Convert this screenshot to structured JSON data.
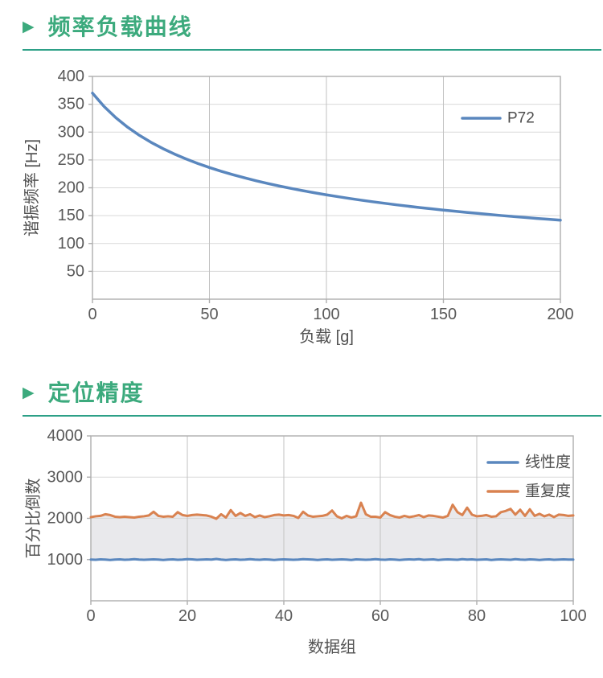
{
  "theme": {
    "title_green": "#3caa7d",
    "rule_green": "#2da087",
    "series_blue": "#5a87be",
    "series_orange": "#d98250",
    "fill_gray": "#e9e9ec",
    "tick_text": "#595959"
  },
  "sections": [
    {
      "marker": "▶",
      "title": "频率负载曲线"
    },
    {
      "marker": "▶",
      "title": "定位精度"
    }
  ],
  "chart_data": [
    {
      "type": "line",
      "title": "",
      "xlabel": "负载 [g]",
      "ylabel": "谐振频率 [Hz]",
      "xlim": [
        0,
        200
      ],
      "ylim": [
        0,
        400
      ],
      "xticks": [
        0,
        50,
        100,
        150,
        200
      ],
      "yticks": [
        50,
        100,
        150,
        200,
        250,
        300,
        350,
        400
      ],
      "grid": true,
      "legend_position": "top-right-inside",
      "series": [
        {
          "name": "P72",
          "color": "#5a87be",
          "x": [
            0,
            5,
            10,
            15,
            20,
            25,
            30,
            35,
            40,
            45,
            50,
            55,
            60,
            65,
            70,
            75,
            80,
            85,
            90,
            95,
            100,
            105,
            110,
            115,
            120,
            125,
            130,
            135,
            140,
            145,
            150,
            155,
            160,
            165,
            170,
            175,
            180,
            185,
            190,
            195,
            200
          ],
          "y": [
            370.0,
            345.8,
            325.8,
            308.9,
            294.4,
            281.7,
            270.6,
            260.7,
            251.8,
            243.7,
            236.4,
            229.7,
            223.6,
            217.9,
            212.6,
            207.7,
            203.1,
            198.8,
            194.8,
            191.0,
            187.4,
            184.0,
            180.8,
            177.7,
            174.8,
            172.1,
            169.4,
            166.9,
            164.5,
            162.2,
            160.0,
            157.9,
            155.8,
            153.9,
            152.0,
            150.1,
            148.4,
            146.7,
            145.0,
            143.5,
            141.9
          ]
        }
      ]
    },
    {
      "type": "line",
      "title": "",
      "xlabel": "数据组",
      "ylabel": "百分比倒数",
      "xlim": [
        0,
        100
      ],
      "ylim": [
        0,
        4000
      ],
      "xticks": [
        0,
        20,
        40,
        60,
        80,
        100
      ],
      "yticks": [
        1000,
        2000,
        3000,
        4000
      ],
      "grid": true,
      "legend_position": "top-right-inside",
      "fill_between": {
        "upper": "重复度",
        "lower": "线性度",
        "color": "#e9e9ec"
      },
      "series": [
        {
          "name": "线性度",
          "color": "#5a87be",
          "x": [
            0,
            1,
            2,
            3,
            4,
            5,
            6,
            7,
            8,
            9,
            10,
            11,
            12,
            13,
            14,
            15,
            16,
            17,
            18,
            19,
            20,
            21,
            22,
            23,
            24,
            25,
            26,
            27,
            28,
            29,
            30,
            31,
            32,
            33,
            34,
            35,
            36,
            37,
            38,
            39,
            40,
            41,
            42,
            43,
            44,
            45,
            46,
            47,
            48,
            49,
            50,
            51,
            52,
            53,
            54,
            55,
            56,
            57,
            58,
            59,
            60,
            61,
            62,
            63,
            64,
            65,
            66,
            67,
            68,
            69,
            70,
            71,
            72,
            73,
            74,
            75,
            76,
            77,
            78,
            79,
            80,
            81,
            82,
            83,
            84,
            85,
            86,
            87,
            88,
            89,
            90,
            91,
            92,
            93,
            94,
            95,
            96,
            97,
            98,
            99,
            100
          ],
          "y": [
            1000,
            995,
            1005,
            1000,
            990,
            1000,
            1005,
            995,
            1000,
            1010,
            1000,
            995,
            1000,
            1005,
            1000,
            990,
            1000,
            1005,
            995,
            1000,
            1010,
            1005,
            995,
            1000,
            1005,
            1000,
            1015,
            1000,
            990,
            1000,
            1005,
            995,
            1000,
            1010,
            1000,
            995,
            1005,
            1000,
            990,
            1000,
            1005,
            1000,
            995,
            1000,
            1010,
            1005,
            1000,
            990,
            1000,
            1005,
            995,
            1000,
            1005,
            1000,
            990,
            1005,
            1000,
            995,
            1000,
            1010,
            1000,
            995,
            1005,
            1000,
            990,
            1000,
            1005,
            1000,
            1010,
            995,
            1000,
            1005,
            990,
            1000,
            1005,
            1000,
            995,
            1010,
            1000,
            1005,
            995,
            1000,
            1005,
            990,
            1000,
            1005,
            1000,
            995,
            1010,
            1000,
            995,
            1005,
            1000,
            990,
            1000,
            1005,
            995,
            1000,
            1005,
            1000,
            1000
          ]
        },
        {
          "name": "重复度",
          "color": "#d98250",
          "x": [
            0,
            1,
            2,
            3,
            4,
            5,
            6,
            7,
            8,
            9,
            10,
            11,
            12,
            13,
            14,
            15,
            16,
            17,
            18,
            19,
            20,
            21,
            22,
            23,
            24,
            25,
            26,
            27,
            28,
            29,
            30,
            31,
            32,
            33,
            34,
            35,
            36,
            37,
            38,
            39,
            40,
            41,
            42,
            43,
            44,
            45,
            46,
            47,
            48,
            49,
            50,
            51,
            52,
            53,
            54,
            55,
            56,
            57,
            58,
            59,
            60,
            61,
            62,
            63,
            64,
            65,
            66,
            67,
            68,
            69,
            70,
            71,
            72,
            73,
            74,
            75,
            76,
            77,
            78,
            79,
            80,
            81,
            82,
            83,
            84,
            85,
            86,
            87,
            88,
            89,
            90,
            91,
            92,
            93,
            94,
            95,
            96,
            97,
            98,
            99,
            100
          ],
          "y": [
            2030,
            2050,
            2060,
            2100,
            2080,
            2040,
            2030,
            2040,
            2030,
            2020,
            2040,
            2050,
            2070,
            2160,
            2060,
            2040,
            2050,
            2040,
            2150,
            2080,
            2060,
            2080,
            2090,
            2080,
            2070,
            2040,
            1990,
            2100,
            2020,
            2200,
            2060,
            2130,
            2060,
            2100,
            2030,
            2070,
            2030,
            2050,
            2080,
            2090,
            2070,
            2080,
            2060,
            2010,
            2160,
            2070,
            2040,
            2050,
            2060,
            2090,
            2190,
            2050,
            2000,
            2060,
            2020,
            2050,
            2380,
            2100,
            2040,
            2040,
            2020,
            2150,
            2080,
            2040,
            2020,
            2060,
            2030,
            2050,
            2080,
            2030,
            2070,
            2060,
            2040,
            2020,
            2060,
            2330,
            2150,
            2080,
            2260,
            2090,
            2050,
            2060,
            2080,
            2040,
            2050,
            2150,
            2180,
            2230,
            2090,
            2210,
            2060,
            2220,
            2060,
            2110,
            2050,
            2090,
            2030,
            2090,
            2080,
            2060,
            2070
          ]
        }
      ]
    }
  ]
}
